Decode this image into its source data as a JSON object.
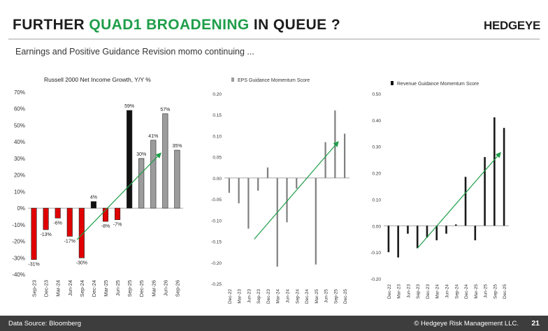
{
  "header": {
    "title_pre": "FURTHER",
    "title_accent": "QUAD1 BROADENING",
    "title_post": "IN QUEUE ?",
    "brand": "HEDGEYE",
    "subtitle": "Earnings and Positive Guidance Revision momo continuing ..."
  },
  "footer": {
    "source": "Data Source: Bloomberg",
    "copyright": "© Hedgeye Risk Management LLC.",
    "page": "21"
  },
  "colors": {
    "accent": "#1f9e4a",
    "negative": "#e00000",
    "actual": "#111111",
    "estimate": "#9c9c9c",
    "trend": "#1f9e4a"
  },
  "chart_data": [
    {
      "type": "bar",
      "title": "Russell 2000 Net Income Growth, Y/Y %",
      "categories": [
        "Sep-23",
        "Dec-23",
        "Mar-24",
        "Jun-24",
        "Sep-24",
        "Dec-24",
        "Mar-25",
        "Jun-25",
        "Sep-25",
        "Dec-25",
        "Mar-26",
        "Jun-26",
        "Sep-26"
      ],
      "values": [
        -31,
        -13,
        -6,
        -17,
        -30,
        4,
        -8,
        -7,
        59,
        30,
        41,
        57,
        35
      ],
      "data_labels": [
        "-31%",
        "-13%",
        "-6%",
        "-17%",
        "-30%",
        "4%",
        "-8%",
        "-7%",
        "59%",
        "30%",
        "41%",
        "57%",
        "35%"
      ],
      "bar_styles": [
        "negative",
        "negative",
        "negative",
        "negative",
        "negative",
        "actual",
        "negative",
        "negative",
        "actual",
        "estimate",
        "estimate",
        "estimate",
        "estimate"
      ],
      "yticks": [
        "70%",
        "60%",
        "50%",
        "40%",
        "30%",
        "20%",
        "10%",
        "0%",
        "-10%",
        "-20%",
        "-30%",
        "-40%"
      ],
      "ylim": [
        -40,
        70
      ],
      "xlabel": "",
      "ylabel": "",
      "trend": {
        "from": [
          3.6,
          -19
        ],
        "to": [
          10.6,
          33
        ]
      }
    },
    {
      "type": "bar",
      "title": "EPS Guidance Momentum Score",
      "legend": "EPS Guidance Momentum Score",
      "categories": [
        "Dec-22",
        "Mar-23",
        "Jun-23",
        "Sep-23",
        "Dec-23",
        "Mar-24",
        "Jun-24",
        "Sep-24",
        "Dec-24",
        "Mar-25",
        "Jun-25",
        "Sep-25",
        "Dec-25"
      ],
      "values": [
        -0.035,
        -0.06,
        -0.12,
        -0.03,
        0.025,
        -0.21,
        -0.105,
        -0.025,
        0.0,
        -0.205,
        0.085,
        0.16,
        0.105
      ],
      "yticks": [
        "0.20",
        "0.15",
        "0.10",
        "0.05",
        "0.00",
        "-0.05",
        "-0.10",
        "-0.15",
        "-0.20",
        "-0.25"
      ],
      "ylim": [
        -0.25,
        0.2
      ],
      "xlabel": "",
      "ylabel": "",
      "trend": {
        "from": [
          2.6,
          -0.145
        ],
        "to": [
          11.3,
          0.085
        ]
      }
    },
    {
      "type": "bar",
      "title": "Revenue Guidance Momentum Score",
      "legend": "Revenue Guidance Momentum Score",
      "categories": [
        "Dec-22",
        "Mar-23",
        "Jun-23",
        "Sep-23",
        "Dec-23",
        "Mar-24",
        "Jun-24",
        "Sep-24",
        "Dec-24",
        "Mar-25",
        "Jun-25",
        "Sep-25",
        "Dec-25"
      ],
      "values": [
        -0.1,
        -0.12,
        -0.03,
        -0.085,
        -0.045,
        -0.055,
        -0.03,
        0.005,
        0.185,
        -0.055,
        0.26,
        0.41,
        0.37
      ],
      "yticks": [
        "0.50",
        "0.40",
        "0.30",
        "0.20",
        "0.10",
        "0.00",
        "-0.10",
        "-0.20"
      ],
      "ylim": [
        -0.2,
        0.5
      ],
      "xlabel": "",
      "ylabel": "",
      "trend": {
        "from": [
          3.0,
          -0.085
        ],
        "to": [
          11.6,
          0.275
        ]
      }
    }
  ]
}
